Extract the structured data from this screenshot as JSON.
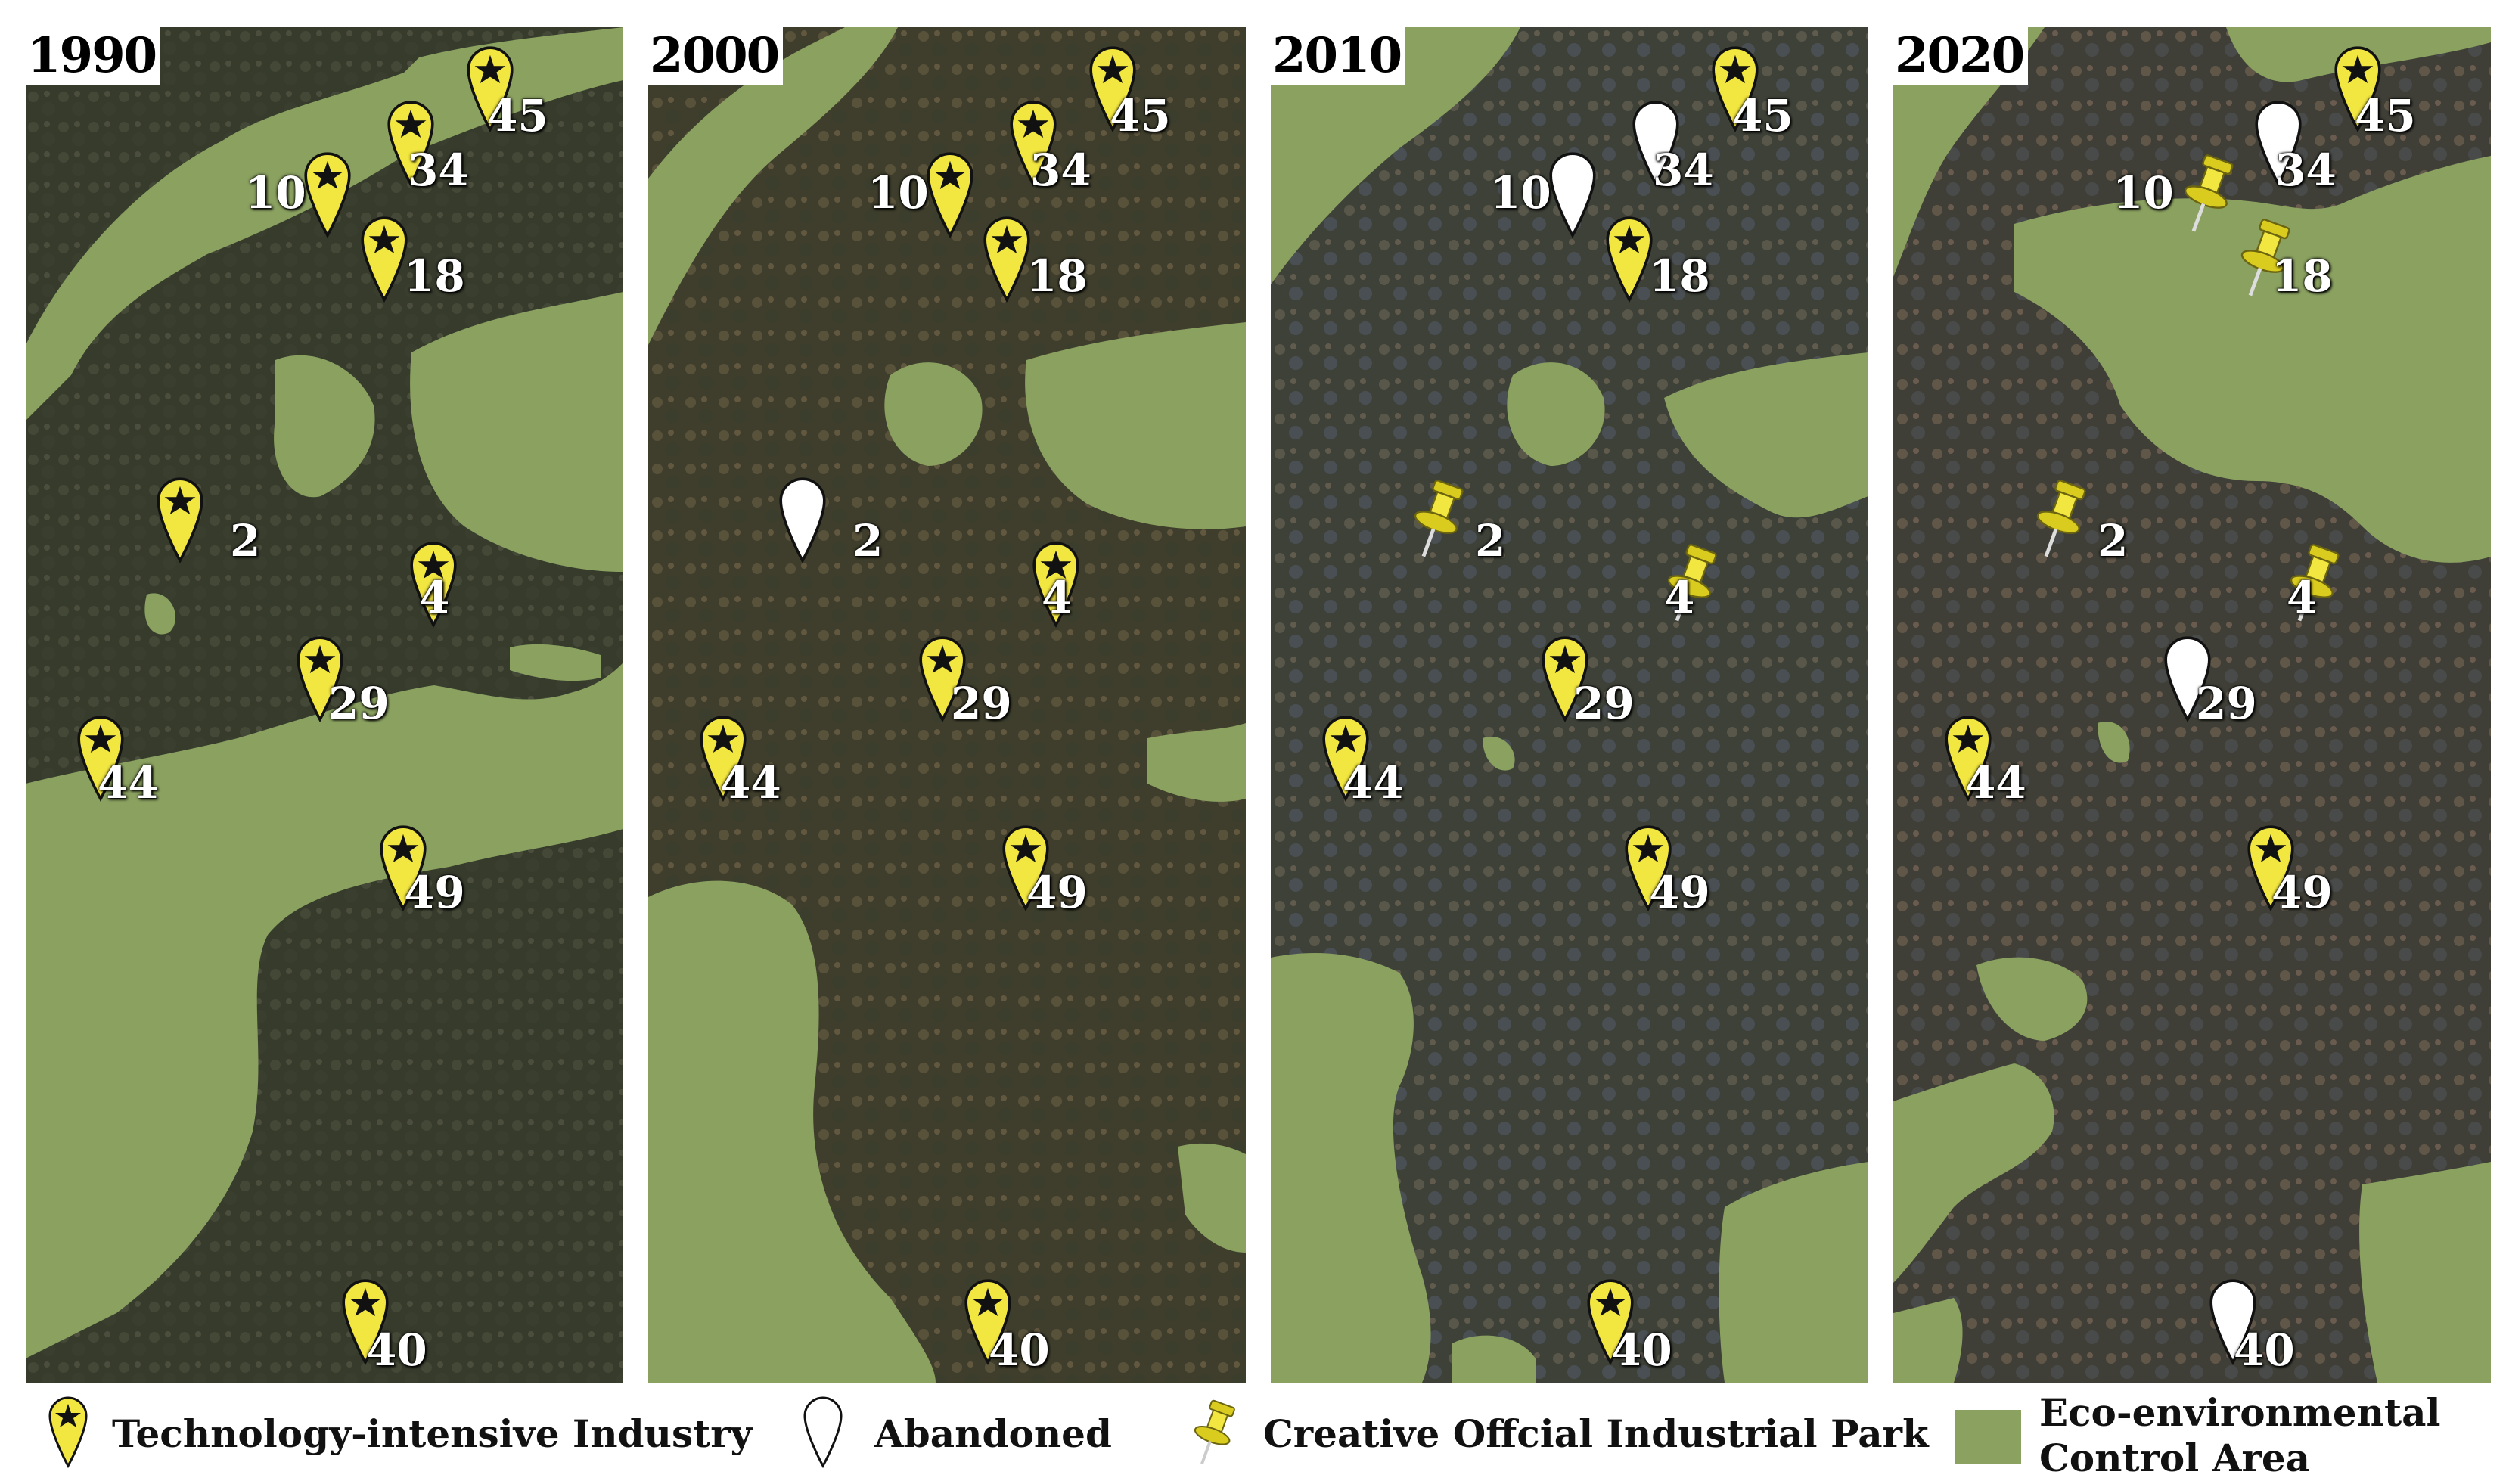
{
  "panels": [
    {
      "year": "1990",
      "eco": "p1990"
    },
    {
      "year": "2000",
      "eco": "p2000"
    },
    {
      "year": "2010",
      "eco": "p2010"
    },
    {
      "year": "2020",
      "eco": "p2020"
    }
  ],
  "sites": [
    "45",
    "34",
    "10",
    "18",
    "2",
    "4",
    "29",
    "44",
    "49",
    "40"
  ],
  "site_status": {
    "1990": {
      "45": "tech",
      "34": "tech",
      "10": "tech",
      "18": "tech",
      "2": "tech",
      "4": "tech",
      "29": "tech",
      "44": "tech",
      "49": "tech",
      "40": "tech"
    },
    "2000": {
      "45": "tech",
      "34": "tech",
      "10": "tech",
      "18": "tech",
      "2": "abandoned",
      "4": "tech",
      "29": "tech",
      "44": "tech",
      "49": "tech",
      "40": "tech"
    },
    "2010": {
      "45": "tech",
      "34": "abandoned",
      "10": "abandoned",
      "18": "tech",
      "2": "creative",
      "4": "creative",
      "29": "tech",
      "44": "tech",
      "49": "tech",
      "40": "tech"
    },
    "2020": {
      "45": "tech",
      "34": "abandoned",
      "10": "creative",
      "18": "creative",
      "2": "creative",
      "4": "creative",
      "29": "abandoned",
      "44": "tech",
      "49": "tech",
      "40": "abandoned"
    }
  },
  "legend": {
    "tech": "Technology-intensive Industry",
    "abandoned": "Abandoned",
    "creative": "Creative Offcial Industrial Park",
    "eco_line1": "Eco-environmental",
    "eco_line2": "Control Area"
  },
  "colors": {
    "eco_area": "#8aa160",
    "marker_yellow": "#f2e640",
    "marker_white": "#ffffff",
    "satellite_dark": "#3a3f2e"
  }
}
